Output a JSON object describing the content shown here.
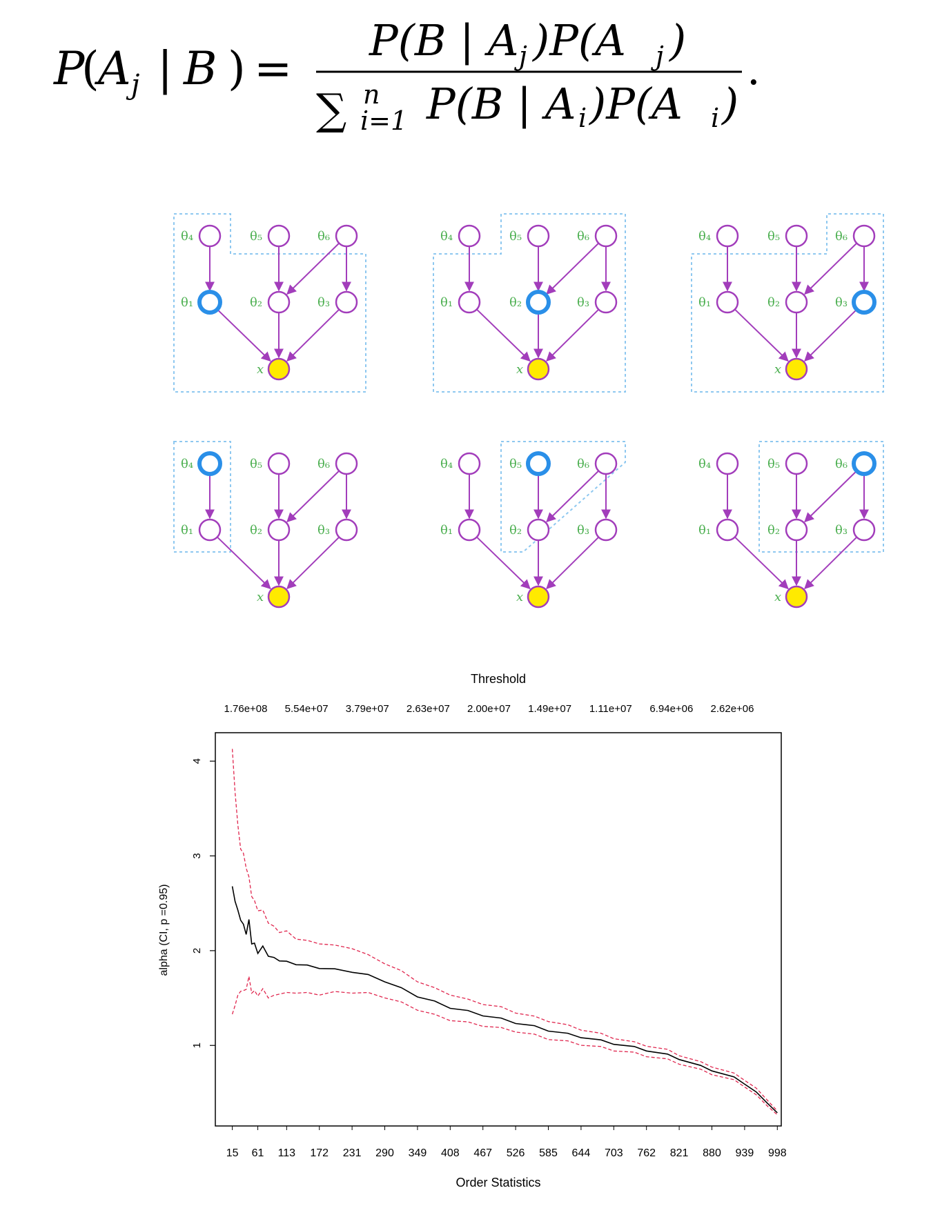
{
  "formula": {
    "lhs_P": "P",
    "lhs_paren_open": "(",
    "lhs_A": "A",
    "lhs_sub": "j",
    "lhs_bar": "|",
    "lhs_B": "B",
    "lhs_paren_close": ")",
    "equals": "=",
    "num_1": "P(B | A",
    "num_sub_1": "j",
    "num_2": ")P(A",
    "num_sub_2": "j",
    "num_3": ")",
    "sum_symbol": "∑",
    "sum_upper": "n",
    "sum_lower": "i=1",
    "den_1": "P(B | A",
    "den_sub_1": "i",
    "den_2": ")P(A",
    "den_sub_2": "i",
    "den_3": ")",
    "period": "."
  },
  "diagrams": {
    "colors": {
      "node": "#a23dbb",
      "highlight": "#2a8fe8",
      "observed": "#ffea00",
      "label": "#4caf50",
      "box": "#8ec8f0"
    },
    "theta_symbol": "θ",
    "x_label": "x",
    "node_labels": [
      "θ₁",
      "θ₂",
      "θ₃",
      "θ₄",
      "θ₅",
      "θ₆",
      "x"
    ],
    "panels": [
      {
        "highlight": 1
      },
      {
        "highlight": 2
      },
      {
        "highlight": 3
      },
      {
        "highlight": 4
      },
      {
        "highlight": 5
      },
      {
        "highlight": 6
      }
    ]
  },
  "chart_data": {
    "type": "line",
    "title_top": "Threshold",
    "xlabel": "Order Statistics",
    "ylabel": "alpha (CI, p =0.95)",
    "x_ticks": [
      "15",
      "61",
      "113",
      "172",
      "231",
      "290",
      "349",
      "408",
      "467",
      "526",
      "585",
      "644",
      "703",
      "762",
      "821",
      "880",
      "939",
      "998"
    ],
    "top_ticks": [
      "1.76e+08",
      "5.54e+07",
      "3.79e+07",
      "2.63e+07",
      "2.00e+07",
      "1.49e+07",
      "1.11e+07",
      "6.94e+06",
      "2.62e+06"
    ],
    "y_ticks": [
      "1",
      "2",
      "3",
      "4"
    ],
    "xlim": [
      15,
      1000
    ],
    "ylim": [
      0.15,
      4.3
    ],
    "series": [
      {
        "role": "estimate",
        "color": "#000000",
        "x": [
          15,
          20,
          25,
          30,
          35,
          40,
          45,
          50,
          55,
          61,
          70,
          80,
          90,
          100,
          113,
          130,
          150,
          172,
          200,
          231,
          260,
          290,
          320,
          349,
          380,
          408,
          440,
          467,
          500,
          526,
          560,
          585,
          620,
          644,
          680,
          703,
          740,
          762,
          800,
          821,
          860,
          880,
          920,
          939,
          960,
          980,
          998
        ],
        "y": [
          2.65,
          2.55,
          2.4,
          2.35,
          2.25,
          2.2,
          2.3,
          2.1,
          2.05,
          2.0,
          2.02,
          1.97,
          1.92,
          1.9,
          1.88,
          1.86,
          1.84,
          1.82,
          1.8,
          1.78,
          1.74,
          1.68,
          1.6,
          1.52,
          1.46,
          1.4,
          1.36,
          1.32,
          1.28,
          1.24,
          1.2,
          1.16,
          1.12,
          1.09,
          1.05,
          1.02,
          0.98,
          0.95,
          0.9,
          0.86,
          0.78,
          0.74,
          0.66,
          0.6,
          0.5,
          0.4,
          0.28
        ]
      },
      {
        "role": "upper",
        "color": "#e0264e",
        "x": [
          15,
          20,
          25,
          30,
          35,
          40,
          45,
          50,
          55,
          61,
          70,
          80,
          90,
          100,
          113,
          130,
          150,
          172,
          200,
          231,
          260,
          290,
          320,
          349,
          380,
          408,
          440,
          467,
          500,
          526,
          560,
          585,
          620,
          644,
          680,
          703,
          740,
          762,
          800,
          821,
          860,
          880,
          920,
          939,
          960,
          980,
          998
        ],
        "y": [
          4.1,
          3.7,
          3.3,
          3.1,
          3.0,
          2.9,
          2.75,
          2.6,
          2.5,
          2.45,
          2.4,
          2.32,
          2.25,
          2.2,
          2.2,
          2.13,
          2.1,
          2.08,
          2.05,
          2.03,
          1.95,
          1.87,
          1.78,
          1.68,
          1.6,
          1.54,
          1.48,
          1.44,
          1.4,
          1.35,
          1.3,
          1.26,
          1.21,
          1.17,
          1.12,
          1.08,
          1.03,
          1.0,
          0.95,
          0.9,
          0.82,
          0.78,
          0.7,
          0.64,
          0.54,
          0.43,
          0.3
        ]
      },
      {
        "role": "lower",
        "color": "#e0264e",
        "x": [
          15,
          20,
          25,
          30,
          35,
          40,
          45,
          50,
          55,
          61,
          70,
          80,
          90,
          100,
          113,
          130,
          150,
          172,
          200,
          231,
          260,
          290,
          320,
          349,
          380,
          408,
          440,
          467,
          500,
          526,
          560,
          585,
          620,
          644,
          680,
          703,
          740,
          762,
          800,
          821,
          860,
          880,
          920,
          939,
          960,
          980,
          998
        ],
        "y": [
          1.3,
          1.45,
          1.5,
          1.6,
          1.55,
          1.62,
          1.7,
          1.58,
          1.55,
          1.55,
          1.57,
          1.53,
          1.52,
          1.55,
          1.55,
          1.56,
          1.55,
          1.54,
          1.56,
          1.56,
          1.55,
          1.51,
          1.45,
          1.38,
          1.32,
          1.27,
          1.24,
          1.21,
          1.18,
          1.15,
          1.11,
          1.07,
          1.04,
          1.01,
          0.98,
          0.95,
          0.92,
          0.89,
          0.85,
          0.81,
          0.74,
          0.7,
          0.63,
          0.57,
          0.47,
          0.37,
          0.26
        ]
      }
    ]
  }
}
